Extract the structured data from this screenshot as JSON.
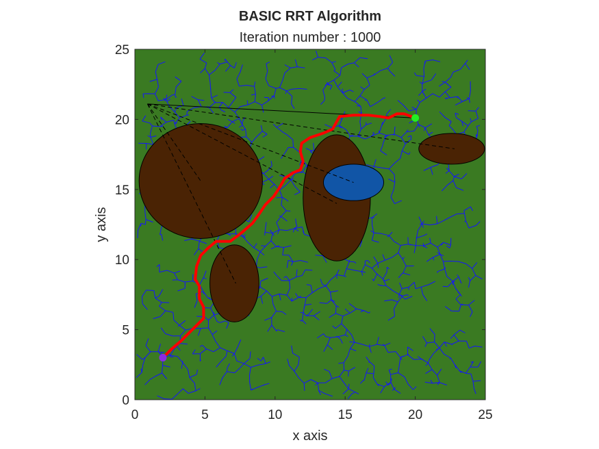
{
  "chart_data": {
    "type": "scatter",
    "title": "BASIC RRT Algorithm",
    "subtitle": "Iteration number : 1000",
    "xlabel": "x axis",
    "ylabel": "y axis",
    "xlim": [
      0,
      25
    ],
    "ylim": [
      0,
      25
    ],
    "xticks": [
      "0",
      "5",
      "10",
      "15",
      "20",
      "25"
    ],
    "yticks": [
      "0",
      "5",
      "10",
      "15",
      "20",
      "25"
    ],
    "grid": false,
    "iterations": 1000,
    "colors": {
      "background": "#3a7a22",
      "obstacle": "#4a2304",
      "water": "#1155a6",
      "tree": "#1414ff",
      "path": "#ff0000",
      "start": "#8a2be2",
      "goal": "#22ee22",
      "sensor": "#000000"
    },
    "start": [
      2,
      3
    ],
    "goal": [
      20,
      20.1
    ],
    "sensor_origin": [
      0.9,
      21.1
    ],
    "obstacles": [
      {
        "kind": "ellipse",
        "cx": 4.7,
        "cy": 15.6,
        "rx": 4.4,
        "ry": 4.1
      },
      {
        "kind": "ellipse",
        "cx": 14.4,
        "cy": 14.4,
        "rx": 2.4,
        "ry": 4.5
      },
      {
        "kind": "ellipse",
        "cx": 7.1,
        "cy": 8.3,
        "rx": 1.75,
        "ry": 2.75
      },
      {
        "kind": "ellipse",
        "cx": 22.6,
        "cy": 17.9,
        "rx": 2.35,
        "ry": 1.1
      }
    ],
    "water": [
      {
        "kind": "ellipse",
        "cx": 15.6,
        "cy": 15.5,
        "rx": 2.15,
        "ry": 1.3
      }
    ],
    "sensor_rays": [
      {
        "to": [
          20,
          20.1
        ],
        "style": "solid"
      },
      {
        "to": [
          22.8,
          17.9
        ],
        "style": "dashed"
      },
      {
        "to": [
          15.6,
          15.5
        ],
        "style": "dashed"
      },
      {
        "to": [
          14.4,
          14.0
        ],
        "style": "dashed"
      },
      {
        "to": [
          4.7,
          15.6
        ],
        "style": "dashed"
      },
      {
        "to": [
          7.2,
          8.3
        ],
        "style": "dashed"
      }
    ],
    "path": [
      [
        2,
        3
      ],
      [
        2.6,
        3.6
      ],
      [
        3.3,
        4.2
      ],
      [
        4,
        4.9
      ],
      [
        4.9,
        5.8
      ],
      [
        4.9,
        6.6
      ],
      [
        4.6,
        7.2
      ],
      [
        4.6,
        8.1
      ],
      [
        4.3,
        8.6
      ],
      [
        4.4,
        9.5
      ],
      [
        4.7,
        10.3
      ],
      [
        5.2,
        10.8
      ],
      [
        5.8,
        11.3
      ],
      [
        6.8,
        11.3
      ],
      [
        7.6,
        11.9
      ],
      [
        8.4,
        12.6
      ],
      [
        8.9,
        13.3
      ],
      [
        9.3,
        13.9
      ],
      [
        9.9,
        14.5
      ],
      [
        10.3,
        15.1
      ],
      [
        10.7,
        15.8
      ],
      [
        11.3,
        16.2
      ],
      [
        11.8,
        16.4
      ],
      [
        12,
        17.0
      ],
      [
        11.8,
        17.7
      ],
      [
        11.9,
        18.3
      ],
      [
        12.5,
        18.7
      ],
      [
        13.4,
        19.0
      ],
      [
        14.1,
        19.3
      ],
      [
        14.6,
        20.2
      ],
      [
        15.6,
        20.3
      ],
      [
        16.7,
        20.3
      ],
      [
        17.5,
        20.2
      ],
      [
        18.1,
        20.1
      ],
      [
        18.7,
        20.4
      ],
      [
        19.2,
        20.4
      ],
      [
        20,
        20.1
      ]
    ]
  }
}
